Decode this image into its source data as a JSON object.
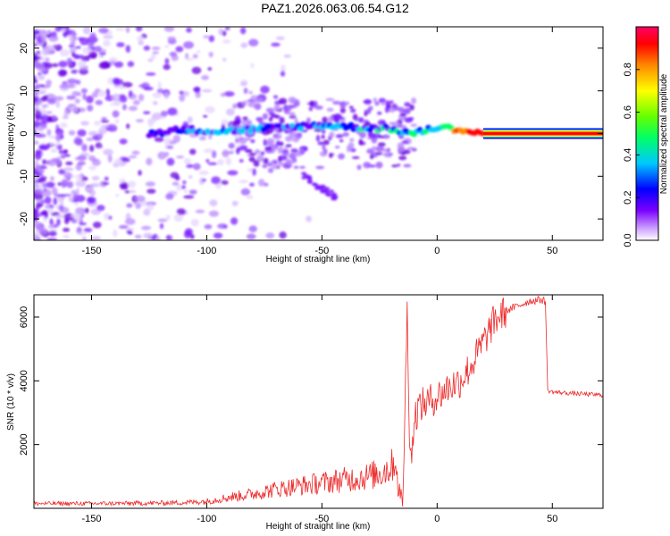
{
  "title": "PAZ1.2026.063.06.54.G12",
  "chart_data": [
    {
      "type": "heatmap",
      "title": "PAZ1.2026.063.06.54.G12",
      "xlabel": "Height of straight line (km)",
      "ylabel": "Frequency (Hz)",
      "xlim": [
        -175,
        72
      ],
      "ylim": [
        -25,
        25
      ],
      "xticks": [
        -150,
        -100,
        -50,
        0,
        50
      ],
      "yticks": [
        -20,
        -10,
        0,
        10,
        20
      ],
      "description_ridge": [
        {
          "x": -125,
          "f": 0.0,
          "a": 0.3
        },
        {
          "x": -110,
          "f": 1.0,
          "a": 0.35
        },
        {
          "x": -95,
          "f": 0.5,
          "a": 0.4
        },
        {
          "x": -80,
          "f": 1.0,
          "a": 0.4
        },
        {
          "x": -65,
          "f": 1.5,
          "a": 0.35
        },
        {
          "x": -50,
          "f": 2.0,
          "a": 0.4
        },
        {
          "x": -35,
          "f": 1.5,
          "a": 0.4
        },
        {
          "x": -20,
          "f": 1.0,
          "a": 0.45
        },
        {
          "x": -10,
          "f": 0.0,
          "a": 0.5
        },
        {
          "x": 0,
          "f": 1.5,
          "a": 0.6
        },
        {
          "x": 10,
          "f": 1.0,
          "a": 0.8
        },
        {
          "x": 20,
          "f": 0.0,
          "a": 0.95
        },
        {
          "x": 72,
          "f": 0.0,
          "a": 0.95
        }
      ],
      "colorbar": {
        "label": "Normalized spectral amplitude",
        "ticks": [
          "0.0",
          "0.2",
          "0.4",
          "0.6",
          "0.8"
        ],
        "range": [
          0,
          1
        ],
        "colors": [
          "#ffffff",
          "#c99aff",
          "#7a00ff",
          "#0000ff",
          "#00c8ff",
          "#00ff66",
          "#66ff00",
          "#ffff00",
          "#ff8800",
          "#ff0000",
          "#ff0066"
        ]
      }
    },
    {
      "type": "line",
      "xlabel": "Height of straight line (km)",
      "ylabel": "SNR (10 * v/v)",
      "xlim": [
        -175,
        72
      ],
      "ylim": [
        0,
        6700
      ],
      "xticks": [
        -150,
        -100,
        -50,
        0,
        50
      ],
      "yticks": [
        2000,
        4000,
        6000
      ],
      "series": [
        {
          "name": "SNR",
          "color": "#ee2a2a",
          "x": [
            -175,
            -150,
            -125,
            -110,
            -100,
            -90,
            -80,
            -70,
            -60,
            -50,
            -40,
            -30,
            -25,
            -20,
            -18,
            -16,
            -15,
            -14,
            -13,
            -12,
            -11,
            -10,
            -8,
            -5,
            0,
            5,
            10,
            15,
            20,
            25,
            30,
            40,
            45,
            47,
            48,
            50,
            60,
            72
          ],
          "y": [
            150,
            150,
            160,
            180,
            220,
            350,
            450,
            600,
            700,
            800,
            900,
            1000,
            1100,
            1300,
            1500,
            200,
            100,
            3000,
            6200,
            2500,
            1500,
            2800,
            3200,
            3300,
            3500,
            3800,
            4000,
            4500,
            5200,
            5900,
            6200,
            6500,
            6550,
            6500,
            3700,
            3650,
            3600,
            3550
          ]
        }
      ]
    }
  ]
}
